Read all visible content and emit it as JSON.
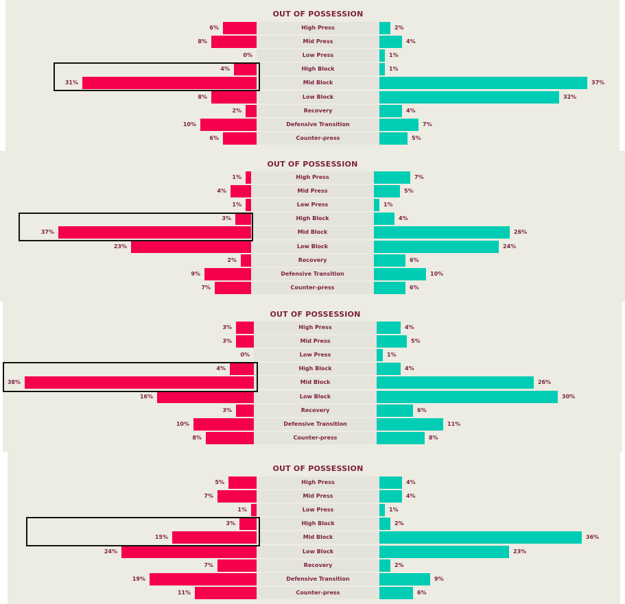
{
  "colors": {
    "background": "#edece2",
    "band": "#e5e4dc",
    "left_bar": "#f5004c",
    "right_bar": "#00cdb4",
    "text": "#7b1f3e",
    "highlight_border": "#111111"
  },
  "chart_data": [
    {
      "type": "bar",
      "orientation": "diverging-horizontal",
      "title": "OUT OF POSSESSION",
      "categories": [
        "High Press",
        "Mid Press",
        "Low Press",
        "High Block",
        "Mid Block",
        "Low Block",
        "Recovery",
        "Defensive Transition",
        "Counter-press"
      ],
      "series": [
        {
          "name": "left",
          "side": "left",
          "values": [
            6,
            8,
            0,
            4,
            31,
            8,
            2,
            10,
            6
          ],
          "labels": [
            "6%",
            "8%",
            "0%",
            "4%",
            "31%",
            "8%",
            "2%",
            "10%",
            "6%"
          ]
        },
        {
          "name": "right",
          "side": "right",
          "values": [
            2,
            4,
            1,
            1,
            37,
            32,
            4,
            7,
            5
          ],
          "labels": [
            "2%",
            "4%",
            "1%",
            "1%",
            "37%",
            "32%",
            "4%",
            "7%",
            "5%"
          ]
        }
      ],
      "highlighted_categories": [
        "High Block",
        "Mid Block"
      ],
      "highlighted_side": "left",
      "unit": "%"
    },
    {
      "type": "bar",
      "orientation": "diverging-horizontal",
      "title": "OUT OF POSSESSION",
      "categories": [
        "High Press",
        "Mid Press",
        "Low Press",
        "High Block",
        "Mid Block",
        "Low Block",
        "Recovery",
        "Defensive Transition",
        "Counter-press"
      ],
      "series": [
        {
          "name": "left",
          "side": "left",
          "values": [
            1,
            4,
            1,
            3,
            37,
            23,
            2,
            9,
            7
          ],
          "labels": [
            "1%",
            "4%",
            "1%",
            "3%",
            "37%",
            "23%",
            "2%",
            "9%",
            "7%"
          ]
        },
        {
          "name": "right",
          "side": "right",
          "values": [
            7,
            5,
            1,
            4,
            26,
            24,
            6,
            10,
            6
          ],
          "labels": [
            "7%",
            "5%",
            "1%",
            "4%",
            "26%",
            "24%",
            "6%",
            "10%",
            "6%"
          ]
        }
      ],
      "highlighted_categories": [
        "High Block",
        "Mid Block"
      ],
      "highlighted_side": "left",
      "unit": "%"
    },
    {
      "type": "bar",
      "orientation": "diverging-horizontal",
      "title": "OUT OF POSSESSION",
      "categories": [
        "High Press",
        "Mid Press",
        "Low Press",
        "High Block",
        "Mid Block",
        "Low Block",
        "Recovery",
        "Defensive Transition",
        "Counter-press"
      ],
      "series": [
        {
          "name": "left",
          "side": "left",
          "values": [
            3,
            3,
            0,
            4,
            38,
            16,
            3,
            10,
            8
          ],
          "labels": [
            "3%",
            "3%",
            "0%",
            "4%",
            "38%",
            "16%",
            "3%",
            "10%",
            "8%"
          ]
        },
        {
          "name": "right",
          "side": "right",
          "values": [
            4,
            5,
            1,
            4,
            26,
            30,
            6,
            11,
            8
          ],
          "labels": [
            "4%",
            "5%",
            "1%",
            "4%",
            "26%",
            "30%",
            "6%",
            "11%",
            "8%"
          ]
        }
      ],
      "highlighted_categories": [
        "High Block",
        "Mid Block"
      ],
      "highlighted_side": "left",
      "unit": "%"
    },
    {
      "type": "bar",
      "orientation": "diverging-horizontal",
      "title": "OUT OF POSSESSION",
      "categories": [
        "High Press",
        "Mid Press",
        "Low Press",
        "High Block",
        "Mid Block",
        "Low Block",
        "Recovery",
        "Defensive Transition",
        "Counter-press"
      ],
      "series": [
        {
          "name": "left",
          "side": "left",
          "values": [
            5,
            7,
            1,
            3,
            15,
            24,
            7,
            19,
            11
          ],
          "labels": [
            "5%",
            "7%",
            "1%",
            "3%",
            "15%",
            "24%",
            "7%",
            "19%",
            "11%"
          ]
        },
        {
          "name": "right",
          "side": "right",
          "values": [
            4,
            4,
            1,
            2,
            36,
            23,
            2,
            9,
            6
          ],
          "labels": [
            "4%",
            "4%",
            "1%",
            "2%",
            "36%",
            "23%",
            "2%",
            "9%",
            "6%"
          ]
        }
      ],
      "highlighted_categories": [
        "High Block",
        "Mid Block"
      ],
      "highlighted_side": "left",
      "unit": "%"
    }
  ]
}
